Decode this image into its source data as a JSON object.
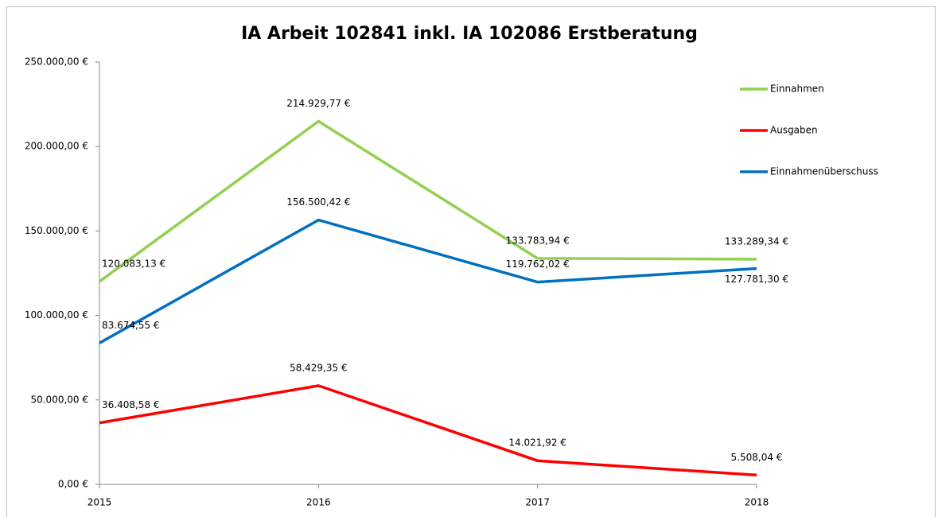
{
  "chart_data": {
    "type": "line",
    "title": "IA Arbeit 102841 inkl. IA 102086 Erstberatung",
    "categories": [
      "2015",
      "2016",
      "2017",
      "2018"
    ],
    "series": [
      {
        "name": "Einnahmen",
        "color": "#92d050",
        "values": [
          120083.13,
          214929.77,
          133783.94,
          133289.34
        ],
        "value_labels": [
          "120.083,13 €",
          "214.929,77 €",
          "133.783,94 €",
          "133.289,34 €"
        ]
      },
      {
        "name": "Ausgaben",
        "color": "#ff0000",
        "values": [
          36408.58,
          58429.35,
          14021.92,
          5508.04
        ],
        "value_labels": [
          "36.408,58 €",
          "58.429,35 €",
          "14.021,92 €",
          "5.508,04 €"
        ]
      },
      {
        "name": "Einnahmenüberschuss",
        "color": "#0070c0",
        "values": [
          83674.55,
          156500.42,
          119762.02,
          127781.3
        ],
        "value_labels": [
          "83.674,55 €",
          "156.500,42 €",
          "119.762,02 €",
          "127.781,30 €"
        ]
      }
    ],
    "ylim": [
      0,
      250000
    ],
    "yticks": [
      {
        "value": 0,
        "label": "0,00 €"
      },
      {
        "value": 50000,
        "label": "50.000,00 €"
      },
      {
        "value": 100000,
        "label": "100.000,00 €"
      },
      {
        "value": 150000,
        "label": "150.000,00 €"
      },
      {
        "value": 200000,
        "label": "200.000,00 €"
      },
      {
        "value": 250000,
        "label": "250.000,00 €"
      }
    ],
    "legend": "right"
  }
}
